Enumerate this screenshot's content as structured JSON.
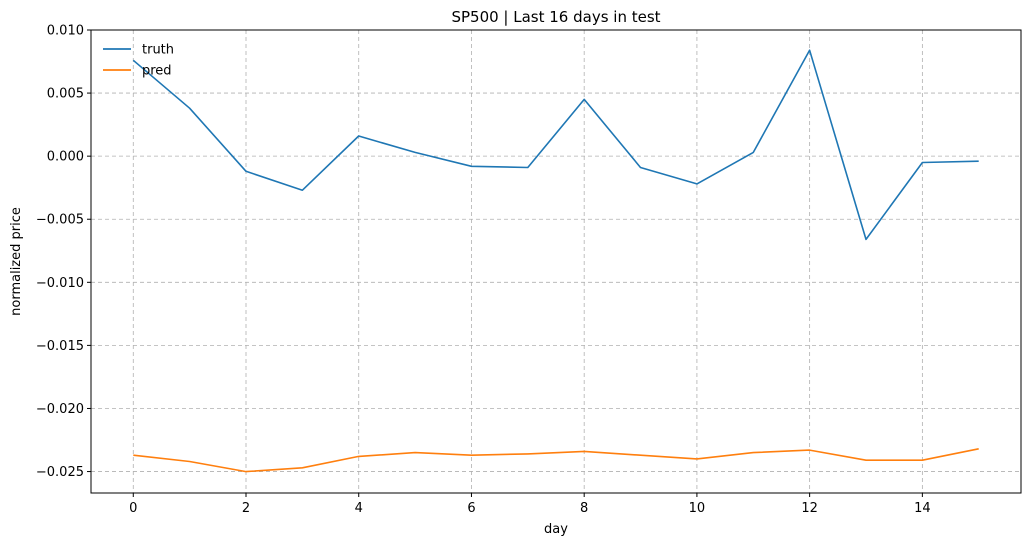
{
  "chart_data": {
    "type": "line",
    "title": "SP500 | Last 16 days in test",
    "xlabel": "day",
    "ylabel": "normalized price",
    "xlim": [
      -0.75,
      15.75
    ],
    "ylim": [
      -0.0267,
      0.01
    ],
    "x_ticks": [
      0,
      2,
      4,
      6,
      8,
      10,
      12,
      14
    ],
    "x_tick_labels": [
      "0",
      "2",
      "4",
      "6",
      "8",
      "10",
      "12",
      "14"
    ],
    "y_ticks": [
      0.01,
      0.005,
      0.0,
      -0.005,
      -0.01,
      -0.015,
      -0.02,
      -0.025
    ],
    "y_tick_labels": [
      "0.010",
      "0.005",
      "0.000",
      "−0.005",
      "−0.010",
      "−0.015",
      "−0.020",
      "−0.025"
    ],
    "grid": true,
    "legend_position": "top-left",
    "x": [
      0,
      1,
      2,
      3,
      4,
      5,
      6,
      7,
      8,
      9,
      10,
      11,
      12,
      13,
      14,
      15
    ],
    "series": [
      {
        "name": "truth",
        "color": "#1f77b4",
        "values": [
          0.0076,
          0.0038,
          -0.0012,
          -0.0027,
          0.0016,
          0.0003,
          -0.0008,
          -0.0009,
          0.0045,
          -0.0009,
          -0.0022,
          0.0003,
          0.0084,
          -0.0066,
          -0.0005,
          -0.0004
        ]
      },
      {
        "name": "pred",
        "color": "#ff7f0e",
        "values": [
          -0.0237,
          -0.0242,
          -0.025,
          -0.0247,
          -0.0238,
          -0.0235,
          -0.0237,
          -0.0236,
          -0.0234,
          -0.0237,
          -0.024,
          -0.0235,
          -0.0233,
          -0.0241,
          -0.0241,
          -0.0232
        ]
      }
    ]
  }
}
